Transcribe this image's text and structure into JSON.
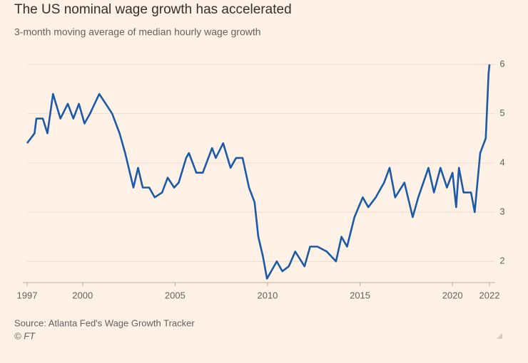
{
  "chart_data": {
    "type": "line",
    "title": "The US nominal wage growth has accelerated",
    "subtitle": "3-month moving average of median hourly wage growth",
    "source": "Source: Atlanta Fed's Wage Growth Tracker",
    "credit": "© FT",
    "x": [
      1997.0,
      1997.4,
      1997.5,
      1997.85,
      1998.1,
      1998.4,
      1998.8,
      1999.2,
      1999.5,
      1999.8,
      2000.1,
      2000.4,
      2000.9,
      2001.25,
      2001.6,
      2002.0,
      2002.3,
      2002.75,
      2003.0,
      2003.25,
      2003.6,
      2003.9,
      2004.3,
      2004.6,
      2004.95,
      2005.2,
      2005.6,
      2005.75,
      2006.15,
      2006.5,
      2007.0,
      2007.2,
      2007.6,
      2008.0,
      2008.3,
      2008.65,
      2009.0,
      2009.3,
      2009.5,
      2009.75,
      2009.97,
      2010.2,
      2010.5,
      2010.8,
      2011.15,
      2011.5,
      2012.0,
      2012.3,
      2012.7,
      2013.2,
      2013.7,
      2014.0,
      2014.3,
      2014.7,
      2015.15,
      2015.45,
      2015.85,
      2016.3,
      2016.6,
      2016.9,
      2017.4,
      2017.85,
      2018.15,
      2018.7,
      2019.0,
      2019.35,
      2019.7,
      2020.0,
      2020.2,
      2020.35,
      2020.6,
      2021.0,
      2021.2,
      2021.5,
      2021.8,
      2021.95,
      2022.0
    ],
    "series": [
      {
        "name": "Median hourly wage growth",
        "color": "#1b5aa6",
        "values": [
          4.4,
          4.6,
          4.9,
          4.9,
          4.6,
          5.4,
          4.9,
          5.2,
          4.9,
          5.2,
          4.8,
          5.0,
          5.4,
          5.2,
          5.0,
          4.6,
          4.2,
          3.5,
          3.9,
          3.5,
          3.5,
          3.3,
          3.4,
          3.7,
          3.5,
          3.6,
          4.1,
          4.2,
          3.8,
          3.8,
          4.3,
          4.1,
          4.4,
          3.9,
          4.1,
          4.1,
          3.5,
          3.2,
          2.5,
          2.1,
          1.65,
          1.8,
          2.0,
          1.8,
          1.9,
          2.2,
          1.9,
          2.3,
          2.3,
          2.2,
          2.0,
          2.5,
          2.3,
          2.9,
          3.3,
          3.1,
          3.3,
          3.6,
          3.9,
          3.3,
          3.6,
          2.9,
          3.3,
          3.9,
          3.4,
          3.9,
          3.5,
          3.8,
          3.1,
          3.9,
          3.4,
          3.4,
          3.0,
          4.2,
          4.5,
          5.8,
          6.0
        ]
      }
    ],
    "xlim": [
      1997,
      2022
    ],
    "xticks": [
      1997,
      2000,
      2005,
      2010,
      2015,
      2020,
      2022
    ],
    "ylim": [
      1.57,
      6.05
    ],
    "yticks": [
      2,
      3,
      4,
      5,
      6
    ],
    "grid": true
  }
}
